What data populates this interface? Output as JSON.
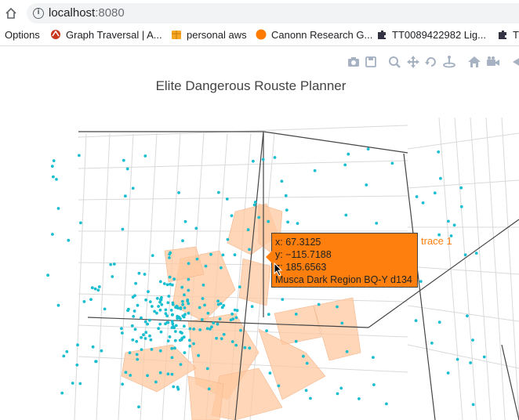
{
  "browser": {
    "url_host": "localhost",
    "url_port": ":8080",
    "bookmarks": [
      {
        "label": "Options",
        "icon": "app-icon"
      },
      {
        "label": "Graph Traversal | A...",
        "icon": "tinkerpop-icon"
      },
      {
        "label": "personal aws",
        "icon": "aws-box-icon"
      },
      {
        "label": "Canonn Research G...",
        "icon": "canonn-icon"
      },
      {
        "label": "TT0089422982 Lig...",
        "icon": "puzzle-icon"
      },
      {
        "label": "T",
        "icon": "puzzle-icon"
      }
    ]
  },
  "modebar": {
    "icons": [
      "camera-icon",
      "save-icon",
      "zoom-icon",
      "pan-icon",
      "orbit-icon",
      "turntable-icon",
      "home-icon",
      "video-camera-icon",
      "hover-icon"
    ]
  },
  "plot": {
    "title": "Elite Dangerous Rouste Planner",
    "trace_label": "trace 1",
    "colors": {
      "points": "#17becf",
      "mesh": "#ffc8a0",
      "tooltip": "#ff7f0e"
    }
  },
  "tooltip": {
    "x_line": "x: 67.3125",
    "y_line": "y: −115.7188",
    "z_line": "z: 185.6563",
    "name_line": "Musca Dark Region BQ-Y d134"
  }
}
